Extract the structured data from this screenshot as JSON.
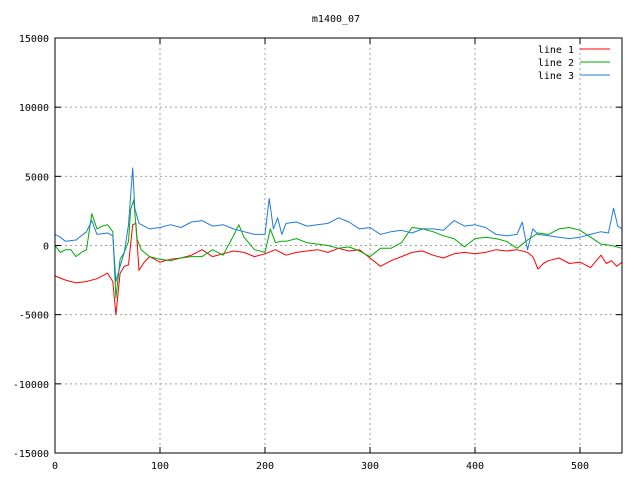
{
  "chart_data": {
    "type": "line",
    "title": "m1400_07",
    "xlabel": "",
    "ylabel": "",
    "xlim": [
      0,
      540
    ],
    "ylim": [
      -15000,
      15000
    ],
    "xticks": [
      0,
      100,
      200,
      300,
      400,
      500
    ],
    "yticks": [
      -15000,
      -10000,
      -5000,
      0,
      5000,
      10000,
      15000
    ],
    "grid": true,
    "legend_position": "top-right",
    "series": [
      {
        "name": "line 1",
        "color": "#ff0000",
        "x": [
          0,
          10,
          20,
          30,
          40,
          50,
          55,
          58,
          62,
          66,
          70,
          74,
          77,
          80,
          85,
          90,
          100,
          110,
          120,
          130,
          140,
          150,
          160,
          170,
          180,
          190,
          200,
          210,
          220,
          230,
          240,
          250,
          260,
          270,
          280,
          290,
          300,
          310,
          320,
          330,
          340,
          350,
          360,
          370,
          380,
          390,
          400,
          410,
          420,
          430,
          440,
          450,
          455,
          460,
          465,
          470,
          480,
          490,
          500,
          510,
          520,
          525,
          530,
          535,
          540
        ],
        "y": [
          -2200,
          -2500,
          -2700,
          -2600,
          -2400,
          -2000,
          -2600,
          -5000,
          -2000,
          -1500,
          -1400,
          1500,
          1600,
          -1800,
          -1200,
          -800,
          -1200,
          -1000,
          -900,
          -700,
          -300,
          -800,
          -600,
          -400,
          -500,
          -800,
          -600,
          -300,
          -700,
          -500,
          -400,
          -300,
          -500,
          -200,
          -400,
          -300,
          -900,
          -1500,
          -1100,
          -800,
          -500,
          -400,
          -700,
          -900,
          -600,
          -500,
          -600,
          -500,
          -300,
          -400,
          -300,
          -500,
          -800,
          -1700,
          -1300,
          -1100,
          -900,
          -1300,
          -1200,
          -1600,
          -700,
          -1300,
          -1100,
          -1500,
          -1200
        ]
      },
      {
        "name": "line 2",
        "color": "#00aa00",
        "x": [
          0,
          5,
          10,
          15,
          20,
          25,
          30,
          35,
          40,
          45,
          50,
          55,
          58,
          62,
          66,
          70,
          72,
          75,
          78,
          82,
          90,
          100,
          110,
          120,
          130,
          140,
          150,
          160,
          170,
          175,
          180,
          190,
          200,
          205,
          210,
          215,
          220,
          230,
          240,
          250,
          260,
          270,
          280,
          290,
          300,
          310,
          320,
          330,
          340,
          350,
          360,
          370,
          380,
          390,
          400,
          410,
          420,
          430,
          440,
          450,
          460,
          470,
          480,
          490,
          500,
          510,
          520,
          530,
          540
        ],
        "y": [
          0,
          -500,
          -300,
          -300,
          -800,
          -500,
          -300,
          2300,
          1200,
          1400,
          1500,
          1000,
          -3800,
          -1000,
          -500,
          300,
          2600,
          3300,
          500,
          -300,
          -800,
          -1000,
          -1100,
          -900,
          -800,
          -800,
          -300,
          -700,
          700,
          1500,
          600,
          -300,
          -500,
          1200,
          200,
          300,
          300,
          500,
          200,
          100,
          0,
          -200,
          -100,
          -400,
          -800,
          -200,
          -200,
          200,
          1300,
          1200,
          1000,
          700,
          500,
          -100,
          500,
          600,
          500,
          300,
          -200,
          400,
          900,
          800,
          1200,
          1300,
          1100,
          600,
          100,
          0,
          -200
        ]
      },
      {
        "name": "line 3",
        "color": "#1f7bd8",
        "x": [
          0,
          5,
          10,
          20,
          30,
          35,
          40,
          50,
          55,
          58,
          62,
          66,
          70,
          74,
          76,
          80,
          90,
          100,
          110,
          120,
          130,
          140,
          150,
          160,
          170,
          180,
          190,
          200,
          204,
          208,
          212,
          216,
          220,
          230,
          240,
          250,
          260,
          270,
          280,
          290,
          300,
          310,
          320,
          330,
          340,
          350,
          360,
          370,
          380,
          390,
          400,
          410,
          420,
          430,
          440,
          445,
          450,
          455,
          460,
          470,
          480,
          490,
          500,
          510,
          520,
          527,
          532,
          536,
          540
        ],
        "y": [
          800,
          600,
          300,
          400,
          1000,
          1800,
          800,
          900,
          700,
          -2600,
          -1500,
          -500,
          1500,
          5600,
          2700,
          1600,
          1200,
          1300,
          1500,
          1300,
          1700,
          1800,
          1400,
          1500,
          1200,
          1000,
          800,
          800,
          3400,
          1200,
          2000,
          800,
          1600,
          1700,
          1400,
          1500,
          1600,
          2000,
          1700,
          1200,
          1300,
          800,
          1000,
          1100,
          900,
          1200,
          1200,
          1100,
          1800,
          1400,
          1500,
          1300,
          800,
          700,
          800,
          1700,
          -300,
          1200,
          800,
          700,
          600,
          500,
          600,
          800,
          1000,
          900,
          2700,
          1400,
          1200
        ]
      }
    ]
  }
}
